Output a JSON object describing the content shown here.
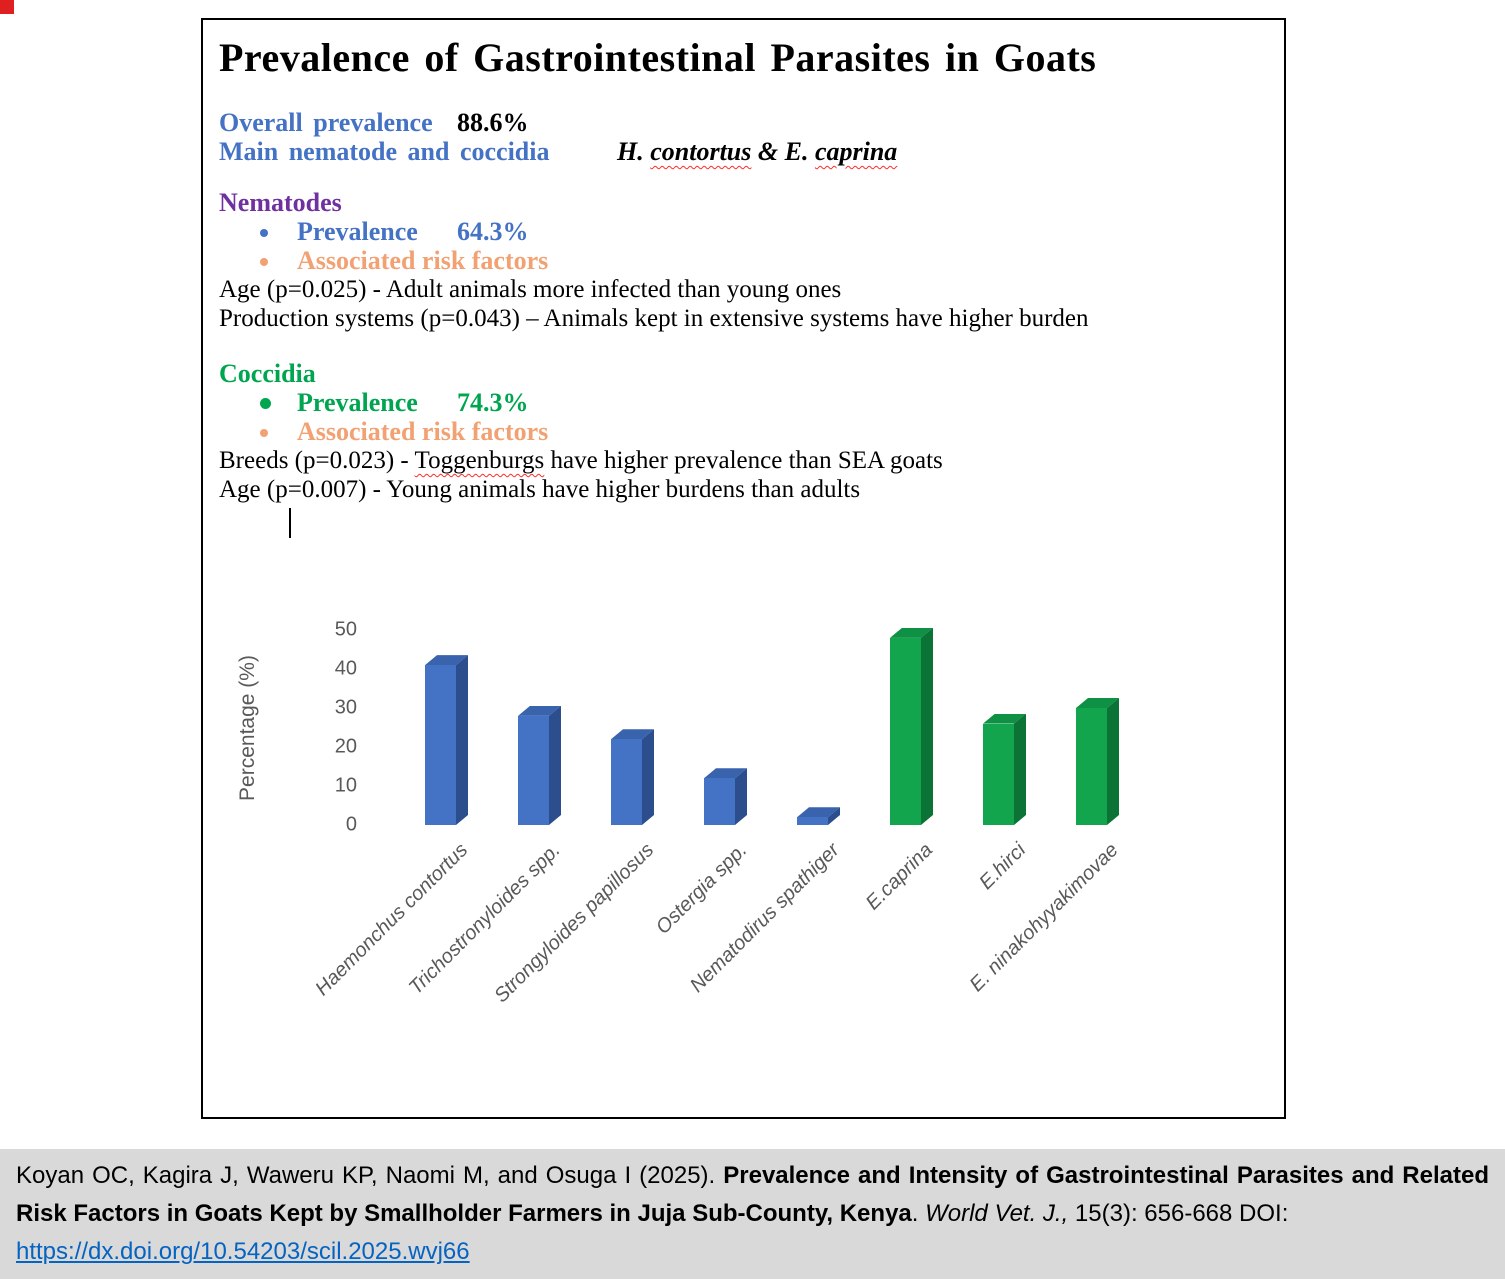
{
  "figure": {
    "title": "Prevalence of Gastrointestinal Parasites in Goats",
    "overall_label": "Overall prevalence",
    "overall_value": "88.6%",
    "main_label": "Main nematode and coccidia",
    "main_species": {
      "h_prefix": "H. ",
      "h_name": "contortus",
      "amp": " & ",
      "e_prefix": "E. ",
      "e_name": "caprina"
    },
    "nematodes": {
      "heading": "Nematodes",
      "prevalence_label": "Prevalence",
      "prevalence_value": "64.3%",
      "risk_label": "Associated risk factors",
      "line1": "Age (p=0.025) - Adult animals more infected than young ones",
      "line2": "Production systems (p=0.043) – Animals kept in extensive systems have higher burden"
    },
    "coccidia": {
      "heading": "Coccidia",
      "prevalence_label": "Prevalence",
      "prevalence_value": "74.3%",
      "risk_label": "Associated risk factors",
      "breeds_pre": "Breeds (p=0.023) - ",
      "breeds_wavy": "Toggenburgs",
      "breeds_post": " have higher prevalence than SEA goats",
      "age_line": "Age (p=0.007) - Young animals have higher burdens than adults"
    }
  },
  "chart_data": {
    "type": "bar",
    "title": "",
    "xlabel": "",
    "ylabel": "Percentage (%)",
    "ylim": [
      0,
      50
    ],
    "yticks": [
      0,
      10,
      20,
      30,
      40,
      50
    ],
    "grid": false,
    "legend": "none",
    "style": "3d-bars",
    "categories": [
      "Haemonchus contortus",
      "Trichostronyloides spp.",
      "Strongyloides papillosus",
      "Ostergia spp.",
      "Nematodirus spathiger",
      "E.caprina",
      "E.hirci",
      "E. ninakohyyakimovae"
    ],
    "values": [
      41,
      28,
      22,
      12,
      2,
      48,
      26,
      30
    ],
    "groups": [
      "nematode",
      "nematode",
      "nematode",
      "nematode",
      "nematode",
      "coccidia",
      "coccidia",
      "coccidia"
    ],
    "colors": {
      "nematode": {
        "front": "#4472C4",
        "top": "#3A63AE",
        "side": "#2C4E8C"
      },
      "coccidia": {
        "front": "#12A54E",
        "top": "#0E9145",
        "side": "#0A7335"
      }
    }
  },
  "citation": {
    "authors": "Koyan OC, Kagira J, Waweru KP, Naomi M, and Osuga I (2025). ",
    "title_bold": "Prevalence and Intensity of Gastrointestinal Parasites and Related Risk Factors in Goats Kept by Smallholder Farmers in Juja Sub-County, Kenya",
    "sep": ". ",
    "journal_italic": "World Vet. J.,",
    "tail": " 15(3): 656-668 DOI:",
    "link": "https://dx.doi.org/10.54203/scil.2025.wvj66"
  },
  "palette": {
    "heading_blue": "#4472C4",
    "heading_purple": "#7030A0",
    "heading_green": "#00A550",
    "risk_orange": "#F2A173",
    "link_blue": "#0563C1",
    "citation_background": "#D9D9D9",
    "wavy_underline_red": "#FF2A2A"
  }
}
